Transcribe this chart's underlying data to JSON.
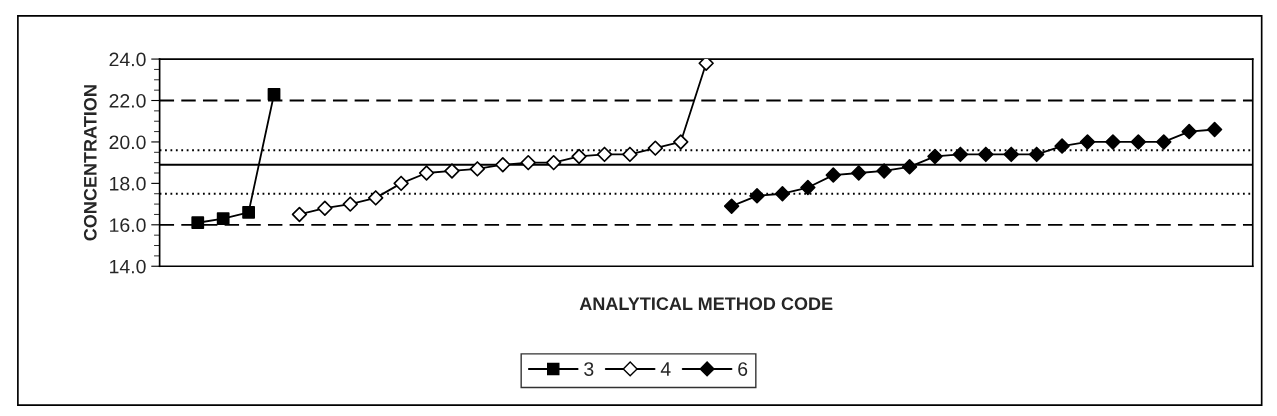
{
  "chart_data": {
    "type": "line",
    "xlabel": "ANALYTICAL METHOD CODE",
    "ylabel": "CONCENTRATION",
    "categories": [
      null,
      null,
      null,
      null,
      null,
      null,
      null,
      null,
      null,
      null,
      null,
      null,
      null,
      null,
      null,
      null,
      null,
      null,
      null,
      null,
      null,
      null,
      null,
      null,
      null,
      null,
      null,
      null,
      null,
      null,
      null,
      null,
      null,
      null,
      null,
      null,
      null,
      null,
      null,
      null,
      null,
      null,
      null
    ],
    "series": [
      {
        "name": "3",
        "color": "#000000",
        "marker": "square",
        "values": [
          null,
          16.1,
          16.3,
          16.6,
          22.3,
          null,
          null,
          null,
          null,
          null,
          null,
          null,
          null,
          null,
          null,
          null,
          null,
          null,
          null,
          null,
          null,
          null,
          null,
          null,
          null,
          null,
          null,
          null,
          null,
          null,
          null,
          null,
          null,
          null,
          null,
          null,
          null,
          null,
          null,
          null,
          null,
          null,
          null
        ],
        "colors": [
          null,
          "#000000",
          "#000000",
          "#000000",
          "#000000",
          null,
          null,
          null,
          null,
          null,
          null,
          null,
          null,
          null,
          null,
          null,
          null,
          null,
          null,
          null,
          null,
          null,
          null,
          null,
          null,
          null,
          null,
          null,
          null,
          null,
          null,
          null,
          null,
          null,
          null,
          null,
          null,
          null,
          null,
          null,
          null,
          null,
          null
        ]
      },
      {
        "name": "4",
        "color": "#000000",
        "marker": "diamond",
        "values": [
          null,
          null,
          null,
          null,
          null,
          16.5,
          16.8,
          17.0,
          17.3,
          18.0,
          18.5,
          18.6,
          18.7,
          18.9,
          19.0,
          19.0,
          19.3,
          19.4,
          19.4,
          19.7,
          20.0,
          23.8,
          null,
          null,
          null,
          null,
          null,
          null,
          null,
          null,
          null,
          null,
          null,
          null,
          null,
          null,
          null,
          null,
          null,
          null,
          null,
          null,
          null
        ],
        "colors": [
          null,
          null,
          null,
          null,
          null,
          "#ffffff",
          "#ffffff",
          "#ffffff",
          "#ffffff",
          "#ffffff",
          "#ffffff",
          "#ffffff",
          "#ffffff",
          "#ffffff",
          "#ffffff",
          "#ffffff",
          "#ffffff",
          "#ffffff",
          "#ffffff",
          "#ffffff",
          "#ffffff",
          "#ffffff",
          null,
          null,
          null,
          null,
          null,
          null,
          null,
          null,
          null,
          null,
          null,
          null,
          null,
          null,
          null,
          null,
          null,
          null,
          null,
          null,
          null
        ]
      },
      {
        "name": "6",
        "color": "#000000",
        "marker": "diamond",
        "values": [
          null,
          null,
          null,
          null,
          null,
          null,
          null,
          null,
          null,
          null,
          null,
          null,
          null,
          null,
          null,
          null,
          null,
          null,
          null,
          null,
          null,
          null,
          16.9,
          17.4,
          17.5,
          17.8,
          18.4,
          18.5,
          18.6,
          18.8,
          19.3,
          19.4,
          19.4,
          19.4,
          19.4,
          19.8,
          20.0,
          20.0,
          20.0,
          20.0,
          20.5,
          20.6,
          null
        ],
        "colors": [
          null,
          null,
          null,
          null,
          null,
          null,
          null,
          null,
          null,
          null,
          null,
          null,
          null,
          null,
          null,
          null,
          null,
          null,
          null,
          null,
          null,
          null,
          "#000000",
          "#000000",
          "#000000",
          "#000000",
          "#000000",
          "#000000",
          "#000000",
          "#000000",
          "#000000",
          "#000000",
          "#000000",
          "#000000",
          "#000000",
          "#000000",
          "#000000",
          "#000000",
          "#000000",
          "#000000",
          "#000000",
          "#000000",
          null
        ]
      }
    ],
    "ylim": [
      14,
      24
    ],
    "yticks": [
      {
        "value": 14,
        "label": "14.0"
      },
      {
        "value": 14.5,
        "label": null
      },
      {
        "value": 15,
        "label": null
      },
      {
        "value": 15.5,
        "label": null
      },
      {
        "value": 16,
        "label": "16.0"
      },
      {
        "value": 16.5,
        "label": null
      },
      {
        "value": 17,
        "label": null
      },
      {
        "value": 17.5,
        "label": null
      },
      {
        "value": 18,
        "label": "18.0"
      },
      {
        "value": 18.5,
        "label": null
      },
      {
        "value": 19,
        "label": null
      },
      {
        "value": 19.5,
        "label": null
      },
      {
        "value": 20,
        "label": "20.0"
      },
      {
        "value": 20.5,
        "label": null
      },
      {
        "value": 21,
        "label": null
      },
      {
        "value": 21.5,
        "label": null
      },
      {
        "value": 22,
        "label": "22.0"
      },
      {
        "value": 22.5,
        "label": null
      },
      {
        "value": 23,
        "label": null
      },
      {
        "value": 23.5,
        "label": null
      },
      {
        "value": 24,
        "label": "24.0"
      }
    ],
    "ref_lines": [
      {
        "axis": "y",
        "value": 22.0,
        "color": "#000000",
        "line_style": "dashed"
      },
      {
        "axis": "y",
        "value": 16.0,
        "color": "#000000",
        "line_style": "dashed"
      },
      {
        "axis": "y",
        "value": 19.6,
        "color": "#000000",
        "line_style": "dotted"
      },
      {
        "axis": "y",
        "value": 17.5,
        "color": "#000000",
        "line_style": "dotted"
      },
      {
        "axis": "y",
        "value": 18.9,
        "color": "#000000",
        "line_style": "solid"
      }
    ],
    "grid": false,
    "legend": "bottom",
    "line_style": "solid"
  }
}
